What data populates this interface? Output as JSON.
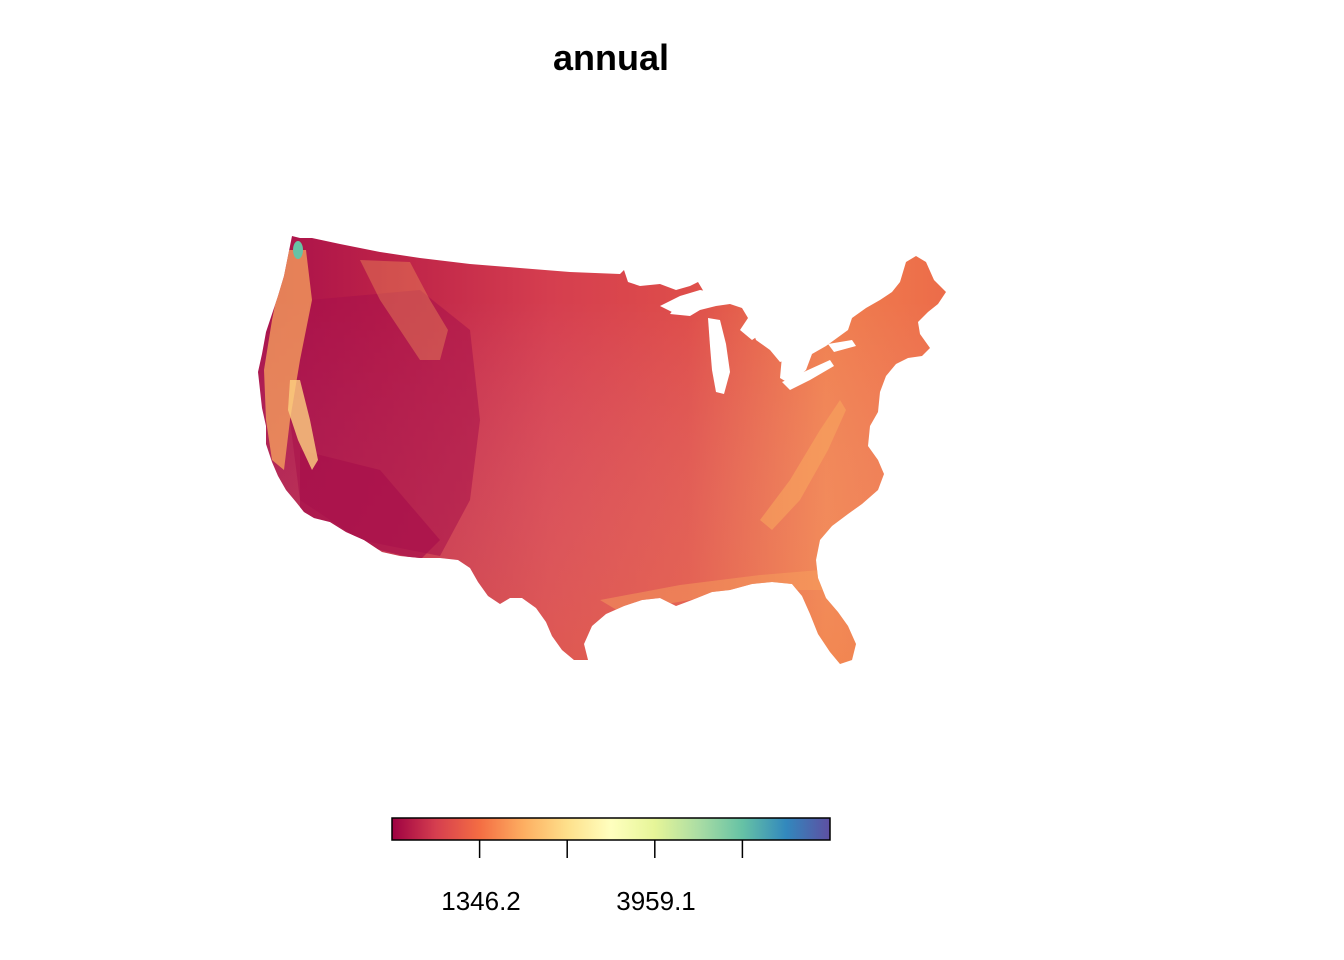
{
  "title": "annual",
  "colormap": {
    "name": "Spectral",
    "stops": [
      "#9e0142",
      "#d53e4f",
      "#f46d43",
      "#fdae61",
      "#fee08b",
      "#ffffbf",
      "#e6f598",
      "#abdda4",
      "#66c2a5",
      "#3288bd",
      "#5e4fa2"
    ]
  },
  "legend": {
    "placement": "bottom",
    "labels": [
      "1346.2",
      "3959.1"
    ],
    "tick_count": 4
  },
  "map_colors": {
    "dry": "#a8104b",
    "west": "#bc2148",
    "plains": "#d53e4f",
    "midwest": "#de4d4a",
    "east": "#ec6b49",
    "southeast": "#f07f4f",
    "mountain_high": "#f8a55d",
    "wet_coast": "#fdd17f",
    "olympic": "#66c2a5"
  }
}
